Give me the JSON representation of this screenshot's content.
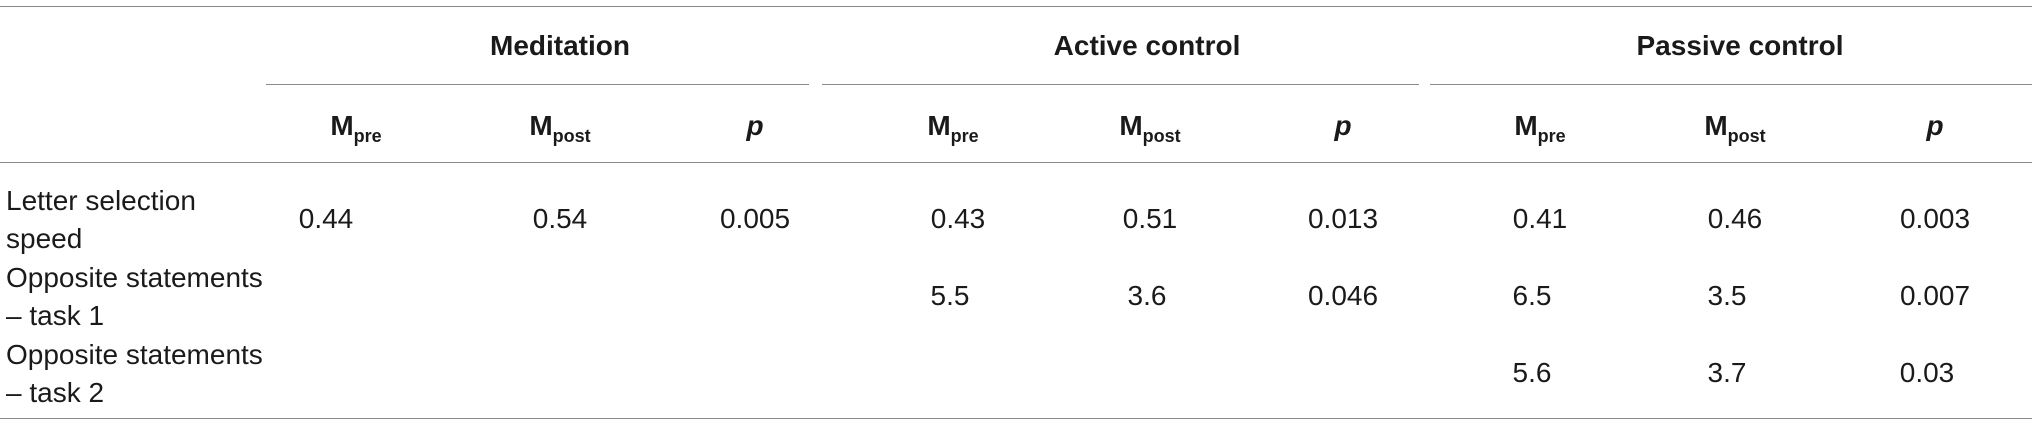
{
  "table": {
    "groups": [
      "Meditation",
      "Active control",
      "Passive control"
    ],
    "subheaders": [
      {
        "main": "M",
        "sub": "pre",
        "italic": false
      },
      {
        "main": "M",
        "sub": "post",
        "italic": false
      },
      {
        "main": "p",
        "sub": "",
        "italic": true
      }
    ],
    "rows": [
      {
        "label": "Letter selection speed",
        "values": [
          "0.44",
          "0.54",
          "0.005",
          "0.43",
          "0.51",
          "0.013",
          "0.41",
          "0.46",
          "0.003"
        ]
      },
      {
        "label": "Opposite statements – task 1",
        "values": [
          "",
          "",
          "",
          "5.5",
          "3.6",
          "0.046",
          "6.5",
          "3.5",
          "0.007"
        ]
      },
      {
        "label": "Opposite statements – task 2",
        "values": [
          "",
          "",
          "",
          "",
          "",
          "",
          "5.6",
          "3.7",
          "0.03"
        ]
      }
    ]
  }
}
